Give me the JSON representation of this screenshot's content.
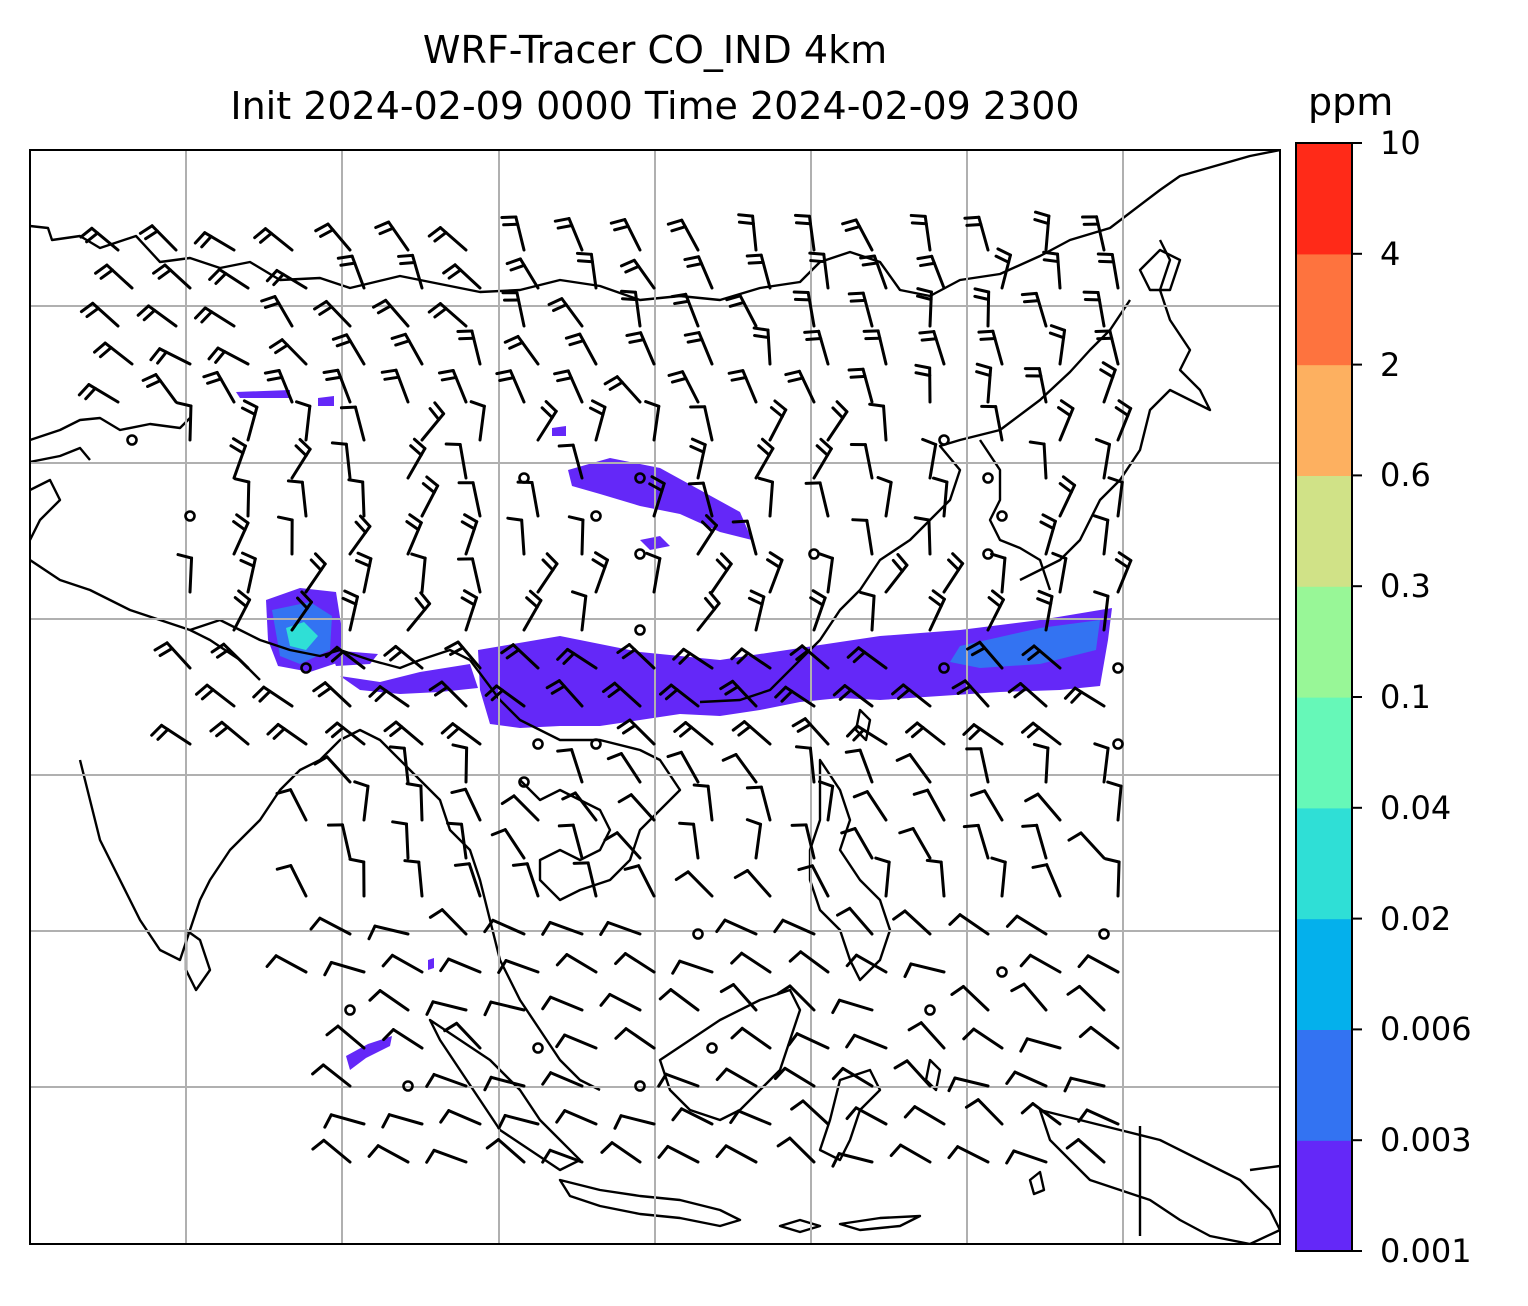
{
  "title": {
    "line1": "WRF-Tracer CO_IND 4km",
    "line2": "Init 2024-02-09 0000 Time 2024-02-09 2300"
  },
  "colorbar": {
    "unit": "ppm",
    "tick_labels": [
      "0.001",
      "0.003",
      "0.006",
      "0.02",
      "0.04",
      "0.1",
      "0.3",
      "0.6",
      "2",
      "4",
      "10"
    ],
    "colors": [
      "#6428f8",
      "#3373f2",
      "#04b0ec",
      "#2fdfd6",
      "#66f8b8",
      "#98f797",
      "#d0e287",
      "#fdb060",
      "#fe733e",
      "#ff2a18"
    ]
  },
  "map": {
    "gridlines": true,
    "tracer_fill_color": "#6428f8",
    "tracer_high_color": "#3373f2",
    "tracer_core_color": "#2fdfd6",
    "wind_barb_color": "#000000",
    "coastline_color": "#000000"
  }
}
